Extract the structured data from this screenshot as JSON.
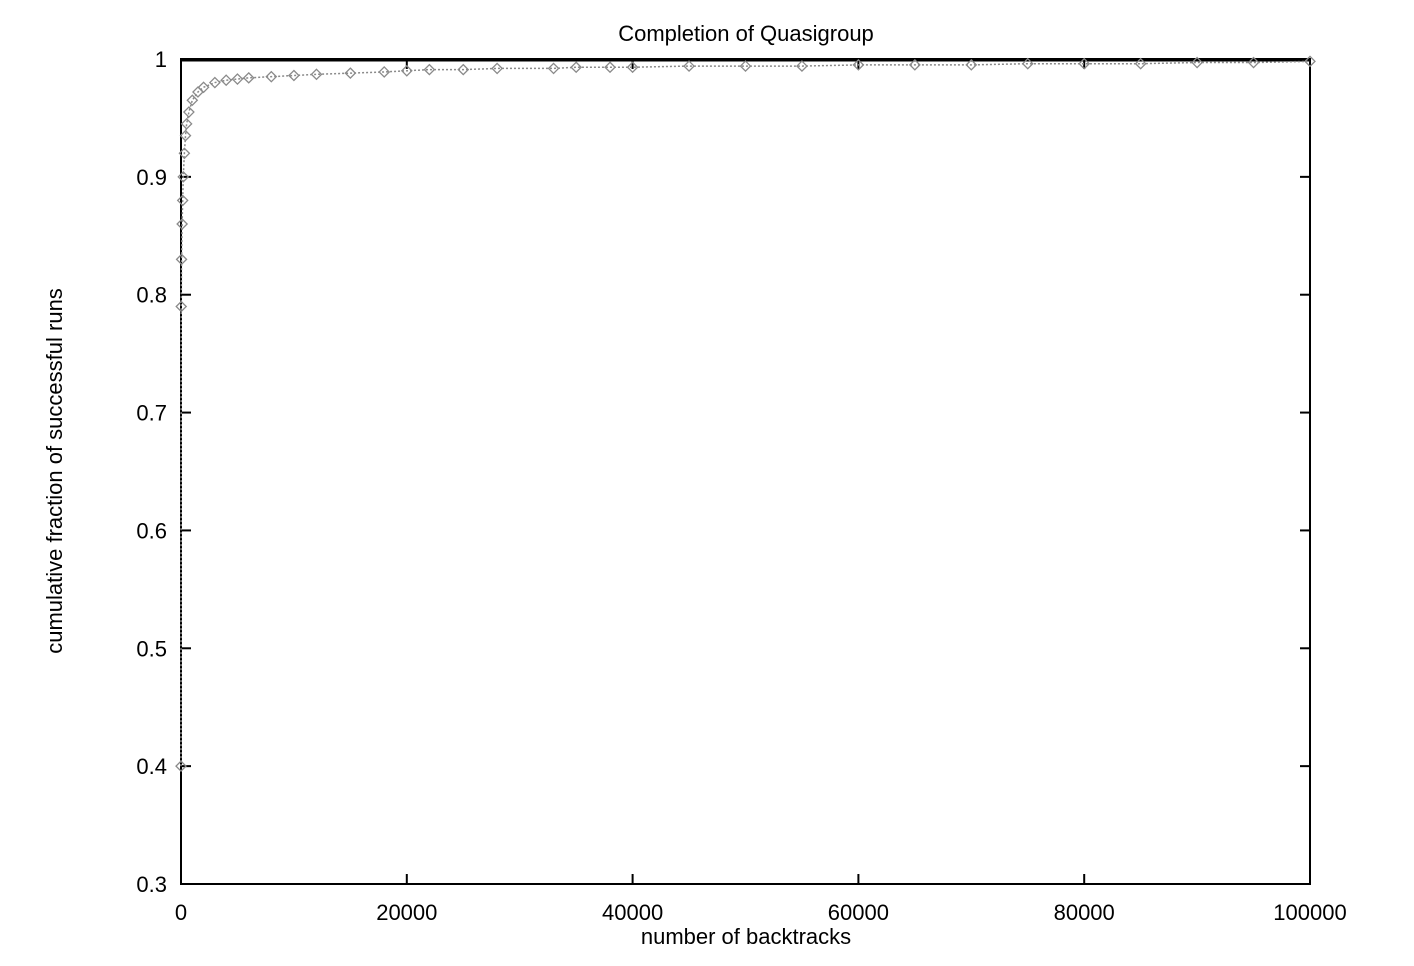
{
  "chart_data": {
    "type": "scatter",
    "title": "Completion of Quasigroup",
    "xlabel": "number of backtracks",
    "ylabel": "cumulative fraction of successful runs",
    "xlim": [
      0,
      100000
    ],
    "ylim": [
      0.3,
      1.0
    ],
    "x_ticks": [
      "0",
      "20000",
      "40000",
      "60000",
      "80000",
      "100000"
    ],
    "y_ticks": [
      "0.3",
      "0.4",
      "0.5",
      "0.6",
      "0.7",
      "0.8",
      "0.9",
      "1"
    ],
    "grid": false,
    "legend": "none",
    "series": [
      {
        "color": "#8a8a8a",
        "x": [
          0,
          20,
          50,
          100,
          150,
          200,
          300,
          400,
          500,
          700,
          1000,
          1500,
          2000,
          3000,
          4000,
          5000,
          6000,
          8000,
          10000,
          12000,
          15000,
          18000,
          20000,
          22000,
          25000,
          28000,
          33000,
          35000,
          38000,
          40000,
          45000,
          50000,
          55000,
          60000,
          65000,
          70000,
          75000,
          80000,
          85000,
          90000,
          95000,
          100000
        ],
        "y": [
          0.4,
          0.79,
          0.83,
          0.86,
          0.88,
          0.9,
          0.92,
          0.935,
          0.945,
          0.955,
          0.965,
          0.972,
          0.976,
          0.98,
          0.982,
          0.983,
          0.984,
          0.985,
          0.986,
          0.987,
          0.988,
          0.989,
          0.99,
          0.991,
          0.991,
          0.992,
          0.992,
          0.993,
          0.993,
          0.993,
          0.994,
          0.994,
          0.994,
          0.995,
          0.995,
          0.995,
          0.996,
          0.996,
          0.996,
          0.997,
          0.997,
          0.998
        ]
      }
    ]
  }
}
